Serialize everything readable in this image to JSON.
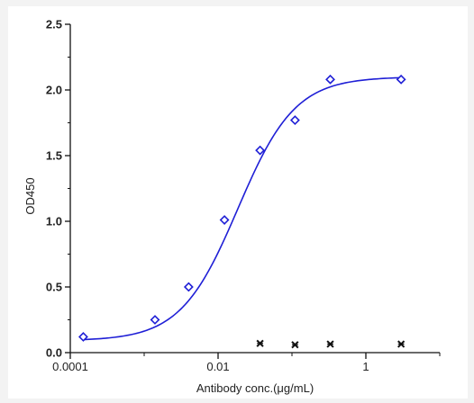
{
  "chart_data": {
    "type": "scatter",
    "title": "",
    "xlabel": "Antibody conc.(μg/mL)",
    "ylabel": "OD450",
    "x_scale": "log",
    "xlim": [
      0.0001,
      10
    ],
    "ylim": [
      0,
      2.5
    ],
    "grid": false,
    "legend": "none",
    "x_ticks": [
      {
        "value": 0.0001,
        "label": "0.0001"
      },
      {
        "value": 0.01,
        "label": "0.01"
      },
      {
        "value": 1,
        "label": "1"
      }
    ],
    "y_ticks": [
      {
        "value": 0,
        "label": "0.0"
      },
      {
        "value": 0.5,
        "label": "0.5"
      },
      {
        "value": 1.0,
        "label": "1.0"
      },
      {
        "value": 1.5,
        "label": "1.5"
      },
      {
        "value": 2.0,
        "label": "2.0"
      },
      {
        "value": 2.5,
        "label": "2.5"
      }
    ],
    "series": [
      {
        "marker": "diamond",
        "color": "#1f1fd6",
        "fit_curve": "4PL",
        "x": [
          0.00015,
          0.0014,
          0.004,
          0.0122,
          0.037,
          0.11,
          0.33,
          3.0
        ],
        "y": [
          0.12,
          0.25,
          0.5,
          1.01,
          1.54,
          1.77,
          2.08,
          2.08
        ]
      },
      {
        "marker": "x",
        "color": "#111111",
        "x": [
          0.037,
          0.11,
          0.33,
          3.0
        ],
        "y": [
          0.07,
          0.06,
          0.065,
          0.065
        ]
      }
    ]
  }
}
